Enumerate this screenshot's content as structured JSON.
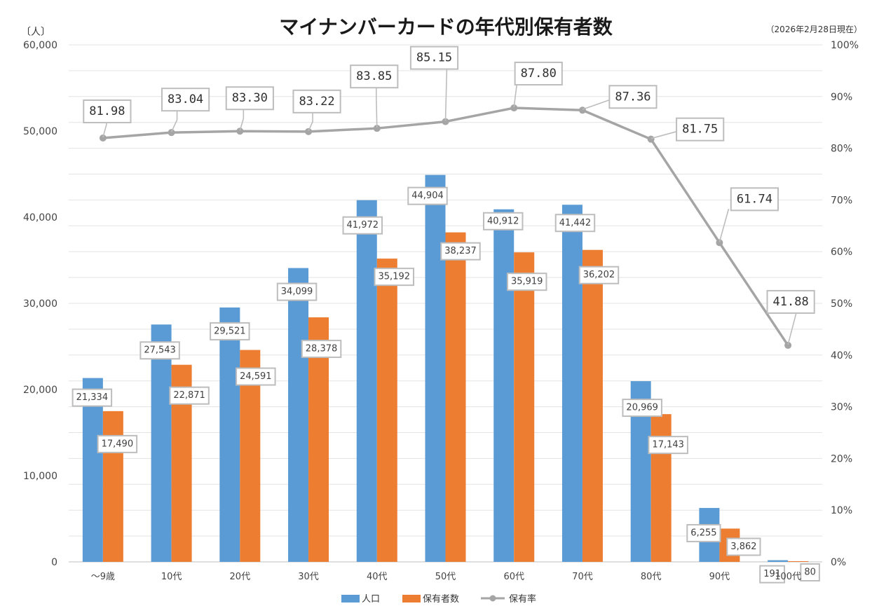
{
  "chart_data": {
    "type": "bar+line",
    "title": "マイナンバーカードの年代別保有者数",
    "as_of": "（2026年2月28日現在）",
    "left_axis_unit": "〔人〕",
    "left_axis_ticks": [
      "0",
      "10,000",
      "20,000",
      "30,000",
      "40,000",
      "50,000",
      "60,000"
    ],
    "right_axis_ticks": [
      "0%",
      "10%",
      "20%",
      "30%",
      "40%",
      "50%",
      "60%",
      "70%",
      "80%",
      "90%",
      "100%"
    ],
    "ylim_left": [
      0,
      60000
    ],
    "ylim_right": [
      0,
      100
    ],
    "categories": [
      "～9歳",
      "10代",
      "20代",
      "30代",
      "40代",
      "50代",
      "60代",
      "70代",
      "80代",
      "90代",
      "100代"
    ],
    "series": [
      {
        "name": "人口",
        "type": "bar",
        "color": "#5B9BD5",
        "values": [
          21334,
          27543,
          29521,
          34099,
          41972,
          44904,
          40912,
          41442,
          20969,
          6255,
          191
        ],
        "labels": [
          "21,334",
          "27,543",
          "29,521",
          "34,099",
          "41,972",
          "44,904",
          "40,912",
          "41,442",
          "20,969",
          "6,255",
          "191"
        ]
      },
      {
        "name": "保有者数",
        "type": "bar",
        "color": "#ED7D31",
        "values": [
          17490,
          22871,
          24591,
          28378,
          35192,
          38237,
          35919,
          36202,
          17143,
          3862,
          80
        ],
        "labels": [
          "17,490",
          "22,871",
          "24,591",
          "28,378",
          "35,192",
          "38,237",
          "35,919",
          "36,202",
          "17,143",
          "3,862",
          "80"
        ]
      },
      {
        "name": "保有率",
        "type": "line",
        "axis": "right",
        "color": "#A5A5A5",
        "values": [
          81.98,
          83.04,
          83.3,
          83.22,
          83.85,
          85.15,
          87.8,
          87.36,
          81.75,
          61.74,
          41.88
        ],
        "labels": [
          "81.98",
          "83.04",
          "83.30",
          "83.22",
          "83.85",
          "85.15",
          "87.80",
          "87.36",
          "81.75",
          "61.74",
          "41.88"
        ]
      }
    ]
  }
}
